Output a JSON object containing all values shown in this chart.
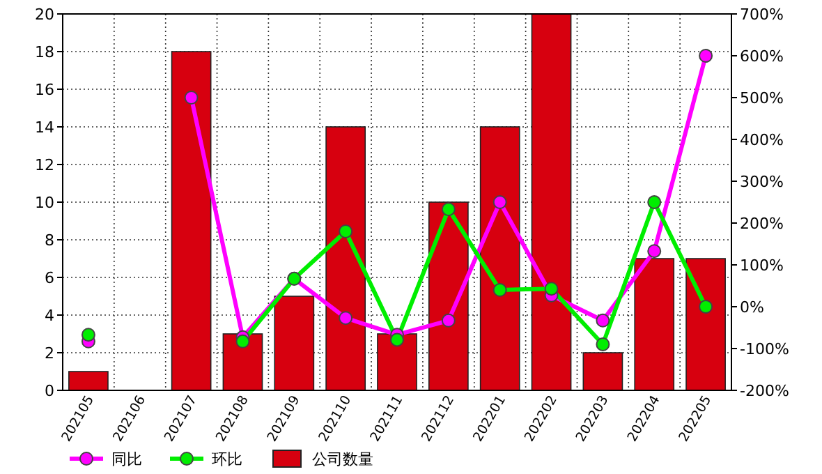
{
  "chart_data": {
    "type": "bar",
    "categories": [
      "202105",
      "202106",
      "202107",
      "202108",
      "202109",
      "202110",
      "202111",
      "202112",
      "202201",
      "202202",
      "202203",
      "202204",
      "202205"
    ],
    "series": [
      {
        "name": "同比",
        "type": "line",
        "axis": "y2",
        "color": "#ff00ff",
        "values": [
          -83,
          null,
          500,
          -73,
          67,
          -27,
          -67,
          -33,
          250,
          27,
          -33,
          133,
          600
        ]
      },
      {
        "name": "环比",
        "type": "line",
        "axis": "y2",
        "color": "#00ee00",
        "values": [
          -67,
          null,
          null,
          -83,
          67,
          180,
          -79,
          233,
          40,
          43,
          -90,
          250,
          0
        ]
      },
      {
        "name": "公司数量",
        "color": "#d7000f",
        "values": [
          1,
          0,
          18,
          3,
          5,
          14,
          3,
          10,
          14,
          20,
          2,
          7,
          7
        ]
      }
    ],
    "ylim": [
      0,
      20
    ],
    "yticks": [
      0,
      2,
      4,
      6,
      8,
      10,
      12,
      14,
      16,
      18,
      20
    ],
    "y2lim": [
      -200,
      700
    ],
    "y2ticks": [
      {
        "value": -200,
        "label": "-200%"
      },
      {
        "value": -100,
        "label": "-100%"
      },
      {
        "value": 0,
        "label": "0%"
      },
      {
        "value": 100,
        "label": "100%"
      },
      {
        "value": 200,
        "label": "200%"
      },
      {
        "value": 300,
        "label": "300%"
      },
      {
        "value": 400,
        "label": "400%"
      },
      {
        "value": 500,
        "label": "500%"
      },
      {
        "value": 600,
        "label": "600%"
      },
      {
        "value": 700,
        "label": "700%"
      }
    ],
    "grid": true,
    "legend": "bottom left",
    "marker": "circle"
  }
}
